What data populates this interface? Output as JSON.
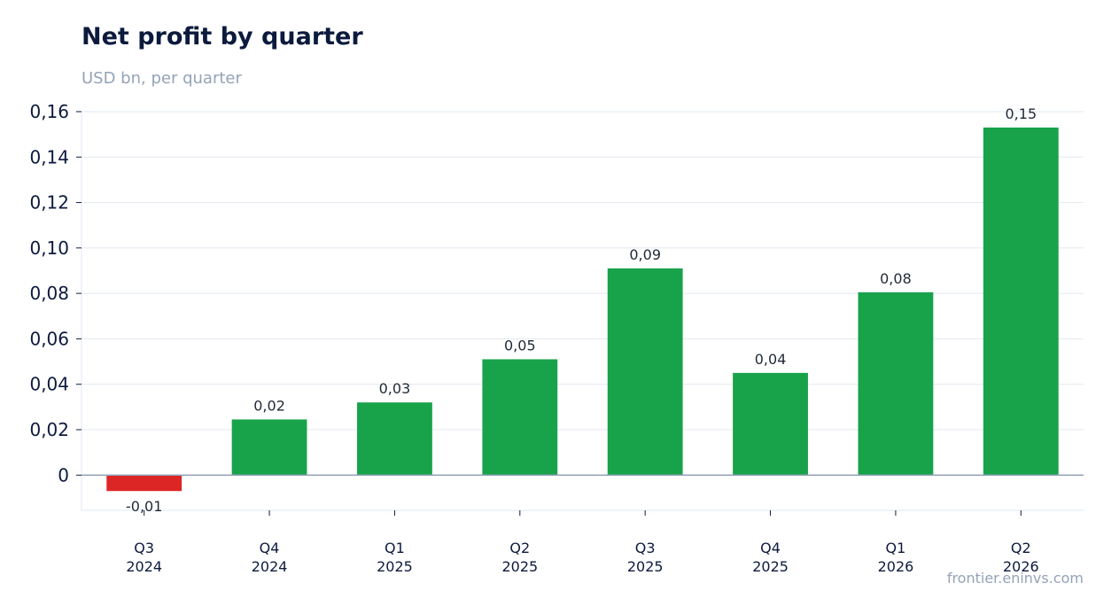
{
  "header": {
    "title": "Net profit by quarter",
    "subtitle": "USD bn, per quarter"
  },
  "footer": {
    "source": "frontier.eninvs.com"
  },
  "colors": {
    "positive": "#18a34a",
    "negative": "#dc2626",
    "grid": "#e2e8f0",
    "zero_line": "#94a3b8",
    "text": "#0c1a3d"
  },
  "chart_data": {
    "type": "bar",
    "categories": [
      [
        "Q3",
        "2024"
      ],
      [
        "Q4",
        "2024"
      ],
      [
        "Q1",
        "2025"
      ],
      [
        "Q2",
        "2025"
      ],
      [
        "Q3",
        "2025"
      ],
      [
        "Q4",
        "2025"
      ],
      [
        "Q1",
        "2026"
      ],
      [
        "Q2",
        "2026"
      ]
    ],
    "values": [
      -0.007,
      0.0245,
      0.032,
      0.051,
      0.091,
      0.045,
      0.0805,
      0.153
    ],
    "data_labels": [
      "-0,01",
      "0,02",
      "0,03",
      "0,05",
      "0,09",
      "0,04",
      "0,08",
      "0,15"
    ],
    "y_ticks": [
      0,
      0.02,
      0.04,
      0.06,
      0.08,
      0.1,
      0.12,
      0.14,
      0.16
    ],
    "y_tick_labels": [
      "0",
      "0,02",
      "0,04",
      "0,06",
      "0,08",
      "0,10",
      "0,12",
      "0,14",
      "0,16"
    ],
    "ylim": [
      -0.0155,
      0.16
    ],
    "grid": true,
    "legend": "none"
  }
}
